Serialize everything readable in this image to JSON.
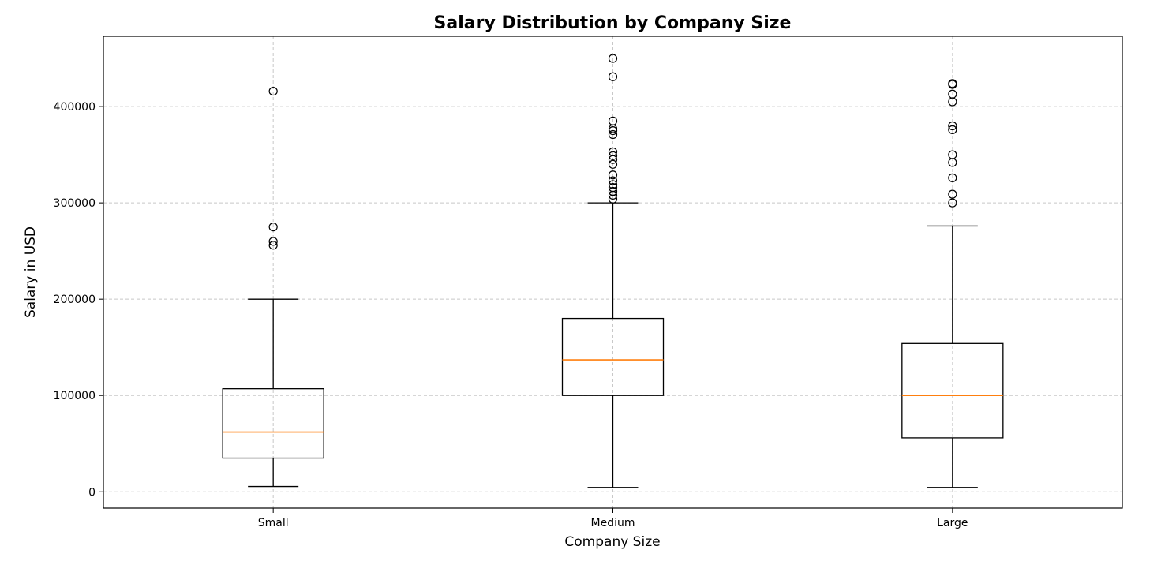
{
  "chart_data": {
    "type": "box",
    "title": "Salary Distribution by Company Size",
    "xlabel": "Company Size",
    "ylabel": "Salary in USD",
    "ylim": [
      -17000,
      473000
    ],
    "yticks": [
      0,
      100000,
      200000,
      300000,
      400000
    ],
    "ytick_labels": [
      "0",
      "100000",
      "200000",
      "300000",
      "400000"
    ],
    "categories": [
      "Small",
      "Medium",
      "Large"
    ],
    "grid": true,
    "colors": {
      "box": "#000000",
      "median": "#ff7f0e",
      "grid": "#c8c8c8"
    },
    "series": [
      {
        "category": "Small",
        "whisker_low": 5500,
        "q1": 35000,
        "median": 62000,
        "q3": 107000,
        "whisker_high": 200000,
        "outliers": [
          416000,
          275000,
          260000,
          256000
        ]
      },
      {
        "category": "Medium",
        "whisker_low": 4500,
        "q1": 100000,
        "median": 137000,
        "q3": 180000,
        "whisker_high": 300000,
        "outliers": [
          450000,
          431000,
          385000,
          377000,
          375000,
          371000,
          353000,
          349000,
          345000,
          340000,
          329000,
          323000,
          319000,
          316000,
          312000,
          308000,
          304000
        ]
      },
      {
        "category": "Large",
        "whisker_low": 4500,
        "q1": 56000,
        "median": 100000,
        "q3": 154000,
        "whisker_high": 276000,
        "outliers": [
          424000,
          423000,
          413000,
          405000,
          380000,
          376000,
          350000,
          342000,
          326000,
          309000,
          300000
        ]
      }
    ]
  }
}
